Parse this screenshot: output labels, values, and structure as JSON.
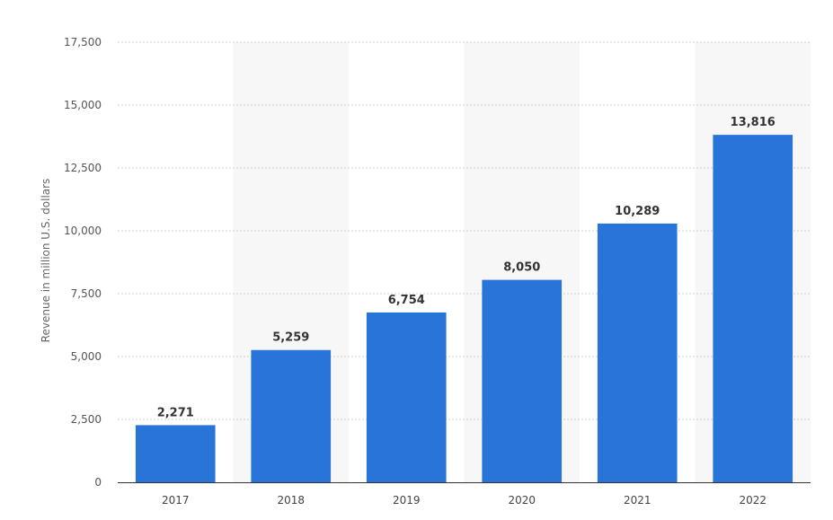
{
  "chart_data": {
    "type": "bar",
    "categories": [
      "2017",
      "2018",
      "2019",
      "2020",
      "2021",
      "2022"
    ],
    "values": [
      2271,
      5259,
      6754,
      8050,
      10289,
      13816
    ],
    "value_labels": [
      "2,271",
      "5,259",
      "6,754",
      "8,050",
      "10,289",
      "13,816"
    ],
    "ylabel": "Revenue in million U.S. dollars",
    "xlabel": "",
    "ylim": [
      0,
      17500
    ],
    "yticks": [
      0,
      2500,
      5000,
      7500,
      10000,
      12500,
      15000,
      17500
    ],
    "ytick_labels": [
      "0",
      "2,500",
      "5,000",
      "7,500",
      "10,000",
      "12,500",
      "15,000",
      "17,500"
    ],
    "grid": true,
    "bar_color": "#2874d9",
    "stripe_color": "#f7f7f7"
  }
}
